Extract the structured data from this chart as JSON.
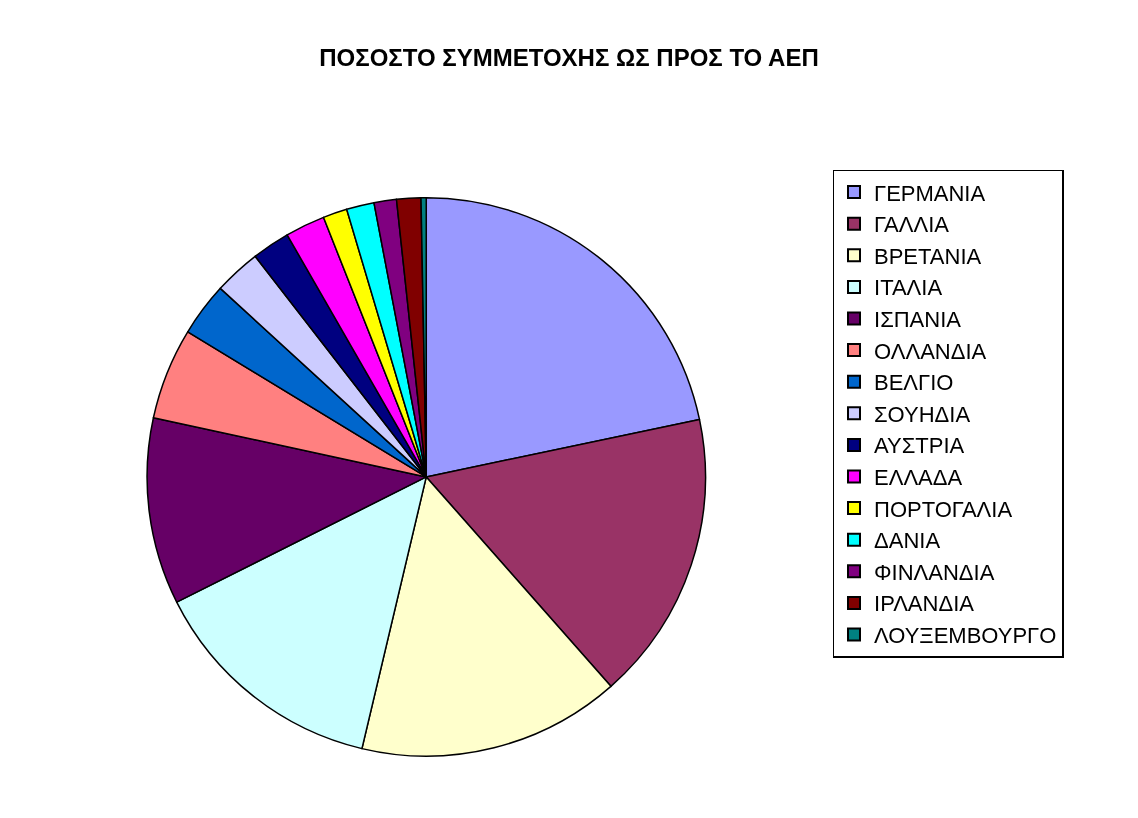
{
  "chart_data": {
    "type": "pie",
    "title": "ΠΟΣΟΣΤΟ ΣΥΜΜΕΤΟΧΗΣ ΩΣ ΠΡΟΣ ΤΟ ΑΕΠ",
    "categories": [
      "ΓΕΡΜΑΝΙΑ",
      "ΓΑΛΛΙΑ",
      "ΒΡΕΤΑΝΙΑ",
      "ΙΤΑΛΙΑ",
      "ΙΣΠΑΝΙΑ",
      "ΟΛΛΑΝΔΙΑ",
      "ΒΕΛΓΙΟ",
      "ΣΟΥΗΔΙΑ",
      "ΑΥΣΤΡΙΑ",
      "ΕΛΛΑΔΑ",
      "ΠΟΡΤΟΓΑΛΙΑ",
      "ΔΑΝΙΑ",
      "ΦΙΝΛΑΝΔΙΑ",
      "ΙΡΛΑΝΔΙΑ",
      "ΛΟΥΞΕΜΒΟΥΡΓΟ"
    ],
    "values": [
      21.7,
      16.8,
      15.2,
      13.9,
      10.8,
      5.3,
      3.1,
      2.7,
      2.2,
      2.3,
      1.4,
      1.6,
      1.3,
      1.4,
      0.3
    ],
    "colors": [
      "#9999ff",
      "#993366",
      "#ffffcc",
      "#ccffff",
      "#660066",
      "#ff8080",
      "#0066cc",
      "#ccccff",
      "#000080",
      "#ff00ff",
      "#ffff00",
      "#00ffff",
      "#800080",
      "#800000",
      "#008080"
    ],
    "legend": "right"
  }
}
